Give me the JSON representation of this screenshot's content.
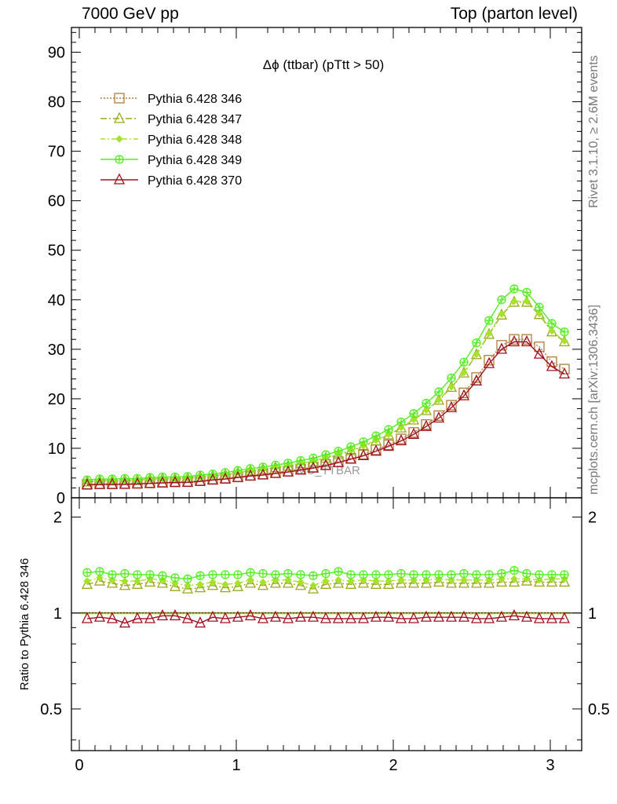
{
  "header": {
    "left": "7000 GeV pp",
    "right": "Top (parton level)"
  },
  "side_labels": {
    "rivet": "Rivet 3.1.10, ≥ 2.6M events",
    "mcplots": "mcplots.cern.ch [arXiv:1306.3436]"
  },
  "chart_data": [
    {
      "type": "line",
      "title": "Δϕ (ttbar) (pTtt > 50)",
      "watermark": "MC_TTBAR",
      "xlim": [
        -0.05,
        3.2
      ],
      "ylim": [
        0,
        95
      ],
      "y_ticks": [
        0,
        10,
        20,
        30,
        40,
        50,
        60,
        70,
        80,
        90
      ],
      "legend_position": "top-left",
      "x": [
        0.05,
        0.13,
        0.21,
        0.29,
        0.37,
        0.45,
        0.53,
        0.61,
        0.69,
        0.77,
        0.85,
        0.93,
        1.01,
        1.09,
        1.17,
        1.25,
        1.33,
        1.41,
        1.49,
        1.57,
        1.65,
        1.73,
        1.81,
        1.89,
        1.97,
        2.05,
        2.13,
        2.21,
        2.29,
        2.37,
        2.45,
        2.53,
        2.61,
        2.69,
        2.77,
        2.85,
        2.93,
        3.01,
        3.09
      ],
      "series": [
        {
          "name": "Pythia 6.428 346",
          "color": "#b07d3a",
          "marker": "square",
          "dash": "2,2",
          "values": [
            2.7,
            2.8,
            2.8,
            2.9,
            2.9,
            3.0,
            3.1,
            3.2,
            3.3,
            3.5,
            3.7,
            3.9,
            4.2,
            4.5,
            4.8,
            5.1,
            5.4,
            5.8,
            6.2,
            6.7,
            7.3,
            8.0,
            8.8,
            9.7,
            10.7,
            11.9,
            13.2,
            14.8,
            16.6,
            18.7,
            21.2,
            24.3,
            27.8,
            30.8,
            32.0,
            32.0,
            30.5,
            27.5,
            26.0
          ]
        },
        {
          "name": "Pythia 6.428 347",
          "color": "#9aa81c",
          "marker": "triangle",
          "dash": "8,3,2,3",
          "values": [
            3.2,
            3.4,
            3.4,
            3.5,
            3.5,
            3.7,
            3.8,
            3.8,
            3.9,
            4.2,
            4.4,
            4.6,
            5.0,
            5.4,
            5.7,
            6.1,
            6.4,
            6.9,
            7.3,
            8.0,
            8.7,
            9.5,
            10.4,
            11.5,
            12.7,
            14.1,
            15.7,
            17.6,
            19.7,
            22.3,
            25.2,
            28.9,
            33.0,
            36.9,
            39.5,
            39.5,
            37.0,
            33.5,
            31.5
          ]
        },
        {
          "name": "Pythia 6.428 348",
          "color": "#a6e22a",
          "marker": "diamond",
          "dash": "6,3,2,3",
          "values": [
            3.3,
            3.5,
            3.5,
            3.6,
            3.6,
            3.8,
            3.9,
            3.9,
            4.0,
            4.3,
            4.5,
            4.7,
            5.1,
            5.5,
            5.8,
            6.2,
            6.5,
            7.0,
            7.4,
            8.1,
            8.8,
            9.6,
            10.5,
            11.6,
            12.8,
            14.2,
            15.8,
            17.7,
            19.8,
            22.4,
            25.3,
            29.0,
            33.2,
            37.1,
            39.7,
            39.7,
            37.2,
            33.7,
            31.7
          ]
        },
        {
          "name": "Pythia 6.428 349",
          "color": "#55ee22",
          "marker": "cross-circle",
          "dash": "",
          "values": [
            3.6,
            3.8,
            3.8,
            3.9,
            3.9,
            4.1,
            4.2,
            4.2,
            4.3,
            4.6,
            4.8,
            5.1,
            5.5,
            5.9,
            6.2,
            6.6,
            7.0,
            7.5,
            8.0,
            8.7,
            9.4,
            10.3,
            11.3,
            12.5,
            13.8,
            15.3,
            17.0,
            19.1,
            21.4,
            24.2,
            27.4,
            31.3,
            35.8,
            40.0,
            42.2,
            41.5,
            38.5,
            35.2,
            33.5
          ]
        },
        {
          "name": "Pythia 6.428 370",
          "color": "#a01020",
          "marker": "triangle",
          "dash": "",
          "values": [
            2.6,
            2.7,
            2.7,
            2.7,
            2.8,
            2.9,
            3.0,
            3.1,
            3.1,
            3.3,
            3.6,
            3.8,
            4.1,
            4.4,
            4.6,
            4.9,
            5.2,
            5.6,
            6.0,
            6.5,
            7.1,
            7.8,
            8.5,
            9.4,
            10.4,
            11.5,
            12.8,
            14.4,
            16.1,
            18.2,
            20.6,
            23.6,
            27.1,
            30.0,
            31.5,
            31.5,
            29.0,
            26.5,
            25.0
          ]
        }
      ]
    },
    {
      "type": "line",
      "ylabel": "Ratio to Pythia 6.428 346",
      "xlim": [
        -0.05,
        3.2
      ],
      "ylim": [
        0.37,
        2.3
      ],
      "y_ticks": [
        0.5,
        1,
        2
      ],
      "y_tick_labels": [
        "0.5",
        "1",
        "2"
      ],
      "x_ticks": [
        0,
        1,
        2,
        3
      ],
      "reference_band": 1.0,
      "ratios": [
        [
          1.0,
          1.0,
          1.0,
          1.0,
          1.0,
          1.0,
          1.0,
          1.0,
          1.0,
          1.0,
          1.0,
          1.0,
          1.0,
          1.0,
          1.0,
          1.0,
          1.0,
          1.0,
          1.0,
          1.0,
          1.0,
          1.0,
          1.0,
          1.0,
          1.0,
          1.0,
          1.0,
          1.0,
          1.0,
          1.0,
          1.0,
          1.0,
          1.0,
          1.0,
          1.0,
          1.0,
          1.0,
          1.0,
          1.0
        ],
        [
          1.23,
          1.26,
          1.24,
          1.22,
          1.23,
          1.25,
          1.24,
          1.21,
          1.19,
          1.2,
          1.22,
          1.2,
          1.21,
          1.24,
          1.22,
          1.24,
          1.24,
          1.22,
          1.19,
          1.23,
          1.24,
          1.23,
          1.24,
          1.23,
          1.23,
          1.24,
          1.24,
          1.24,
          1.25,
          1.24,
          1.24,
          1.24,
          1.24,
          1.25,
          1.25,
          1.26,
          1.25,
          1.25,
          1.25
        ],
        [
          1.26,
          1.29,
          1.27,
          1.26,
          1.26,
          1.28,
          1.27,
          1.24,
          1.22,
          1.23,
          1.25,
          1.23,
          1.24,
          1.27,
          1.25,
          1.27,
          1.27,
          1.25,
          1.22,
          1.26,
          1.27,
          1.26,
          1.27,
          1.26,
          1.26,
          1.27,
          1.27,
          1.27,
          1.28,
          1.27,
          1.27,
          1.27,
          1.27,
          1.28,
          1.28,
          1.28,
          1.27,
          1.28,
          1.28
        ],
        [
          1.34,
          1.35,
          1.32,
          1.33,
          1.32,
          1.32,
          1.31,
          1.29,
          1.28,
          1.31,
          1.32,
          1.32,
          1.32,
          1.34,
          1.33,
          1.32,
          1.33,
          1.32,
          1.31,
          1.33,
          1.35,
          1.32,
          1.32,
          1.32,
          1.32,
          1.33,
          1.32,
          1.32,
          1.32,
          1.32,
          1.33,
          1.32,
          1.32,
          1.33,
          1.36,
          1.33,
          1.32,
          1.32,
          1.32
        ],
        [
          0.96,
          0.97,
          0.96,
          0.93,
          0.96,
          0.96,
          0.98,
          0.98,
          0.96,
          0.93,
          0.97,
          0.96,
          0.97,
          0.98,
          0.96,
          0.97,
          0.96,
          0.97,
          0.97,
          0.96,
          0.96,
          0.96,
          0.96,
          0.97,
          0.97,
          0.96,
          0.96,
          0.97,
          0.97,
          0.97,
          0.97,
          0.96,
          0.96,
          0.97,
          0.98,
          0.97,
          0.96,
          0.96,
          0.96
        ]
      ]
    }
  ]
}
